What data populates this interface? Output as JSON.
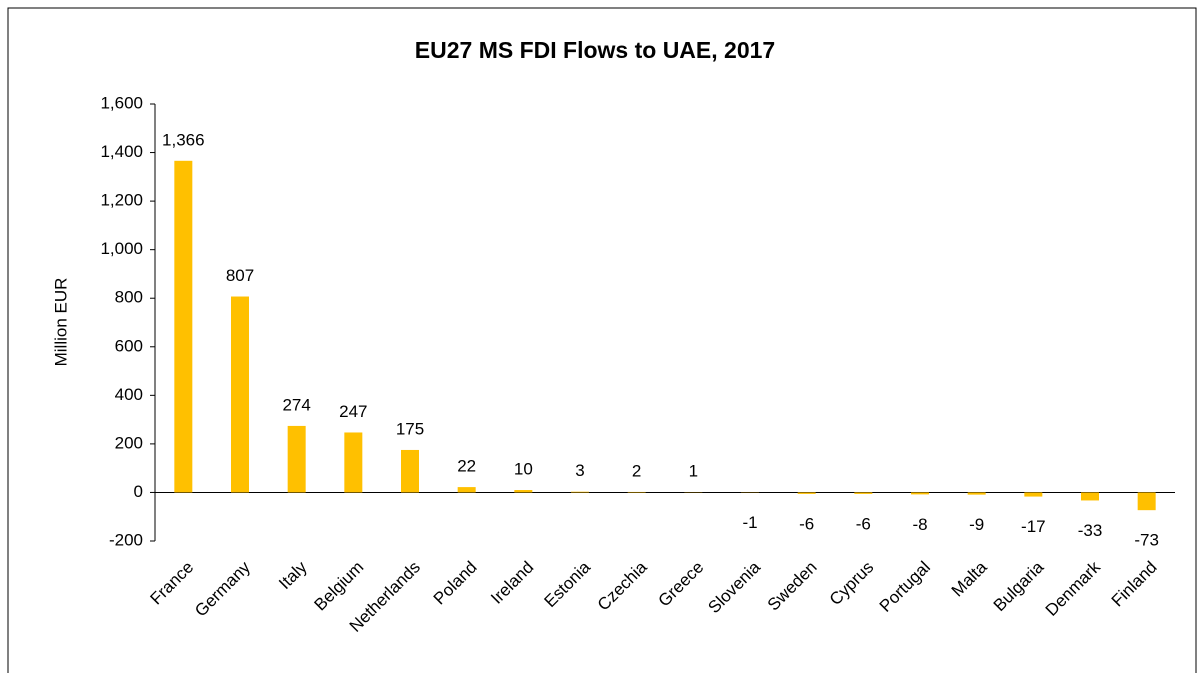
{
  "chart_data": {
    "type": "bar",
    "title": "EU27 MS FDI Flows to UAE, 2017",
    "y_label": "Million EUR",
    "categories": [
      "France",
      "Germany",
      "Italy",
      "Belgium",
      "Netherlands",
      "Poland",
      "Ireland",
      "Estonia",
      "Czechia",
      "Greece",
      "Slovenia",
      "Sweden",
      "Cyprus",
      "Portugal",
      "Malta",
      "Bulgaria",
      "Denmark",
      "Finland"
    ],
    "values": [
      1366,
      807,
      274,
      247,
      175,
      22,
      10,
      3,
      2,
      1,
      -1,
      -6,
      -6,
      -8,
      -9,
      -17,
      -33,
      -73
    ],
    "value_labels": [
      "1,366",
      "807",
      "274",
      "247",
      "175",
      "22",
      "10",
      "3",
      "2",
      "1",
      "-1",
      "-6",
      "-6",
      "-8",
      "-9",
      "-17",
      "-33",
      "-73"
    ],
    "color": "#ffc000",
    "ylim": [
      -200,
      1600
    ],
    "yticks": [
      -200,
      0,
      200,
      400,
      600,
      800,
      {
        "value": 1000,
        "label": "1,000"
      },
      {
        "value": 1200,
        "label": "1,200"
      },
      {
        "value": 1400,
        "label": "1,400"
      },
      {
        "value": 1600,
        "label": "1,600"
      }
    ]
  }
}
